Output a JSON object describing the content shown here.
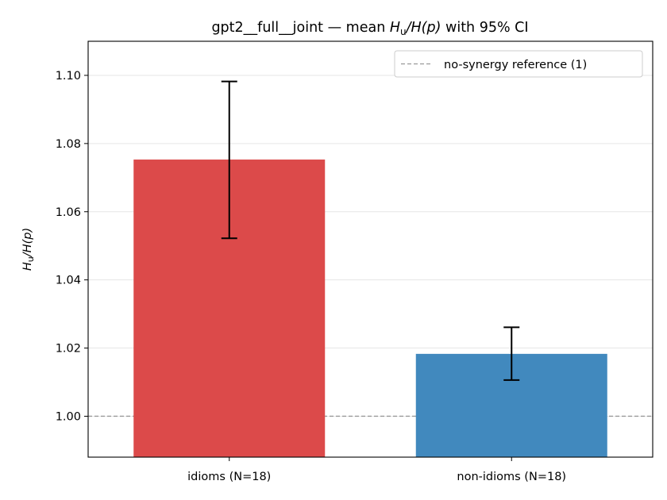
{
  "chart_data": {
    "type": "bar",
    "title_main": "gpt2__full__joint — mean ",
    "title_symbol_H": "H",
    "title_symbol_sub": "u",
    "title_symbol_rest": "/H(p)",
    "title_tail": " with 95% CI",
    "ylabel_H": "H",
    "ylabel_sub": "u",
    "ylabel_rest": "/H(p)",
    "categories": [
      "idioms (N=18)",
      "non-idioms (N=18)"
    ],
    "values": [
      1.0753,
      1.0183
    ],
    "ci_low": [
      1.0522,
      1.0106
    ],
    "ci_high": [
      1.0982,
      1.0261
    ],
    "colors": [
      "#dc4a4a",
      "#4189be"
    ],
    "ylim": [
      0.988,
      1.11
    ],
    "yticks": [
      1.0,
      1.02,
      1.04,
      1.06,
      1.08,
      1.1
    ],
    "ytick_labels": [
      "1.00",
      "1.02",
      "1.04",
      "1.06",
      "1.08",
      "1.10"
    ],
    "reference_value": 1.0,
    "legend": {
      "placement": "top-right",
      "entries": [
        "no-synergy reference (1)"
      ]
    },
    "grid": "y"
  }
}
